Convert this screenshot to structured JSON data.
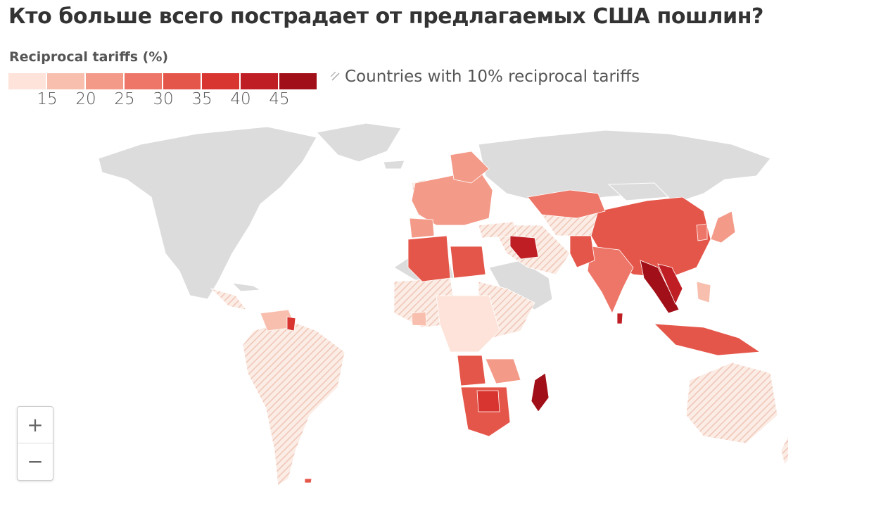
{
  "title": "Кто больше всего пострадает от предлагаемых США пошлин?",
  "legend": {
    "title": "Reciprocal tariffs (%)",
    "colors": [
      "#fde3d9",
      "#f8bfae",
      "#f39a88",
      "#ee7668",
      "#e5564a",
      "#d93530",
      "#bf1f24",
      "#a10f18"
    ],
    "ticks": [
      "15",
      "20",
      "25",
      "30",
      "35",
      "40",
      "45"
    ],
    "hatch_label": "Countries with 10% reciprocal tariffs"
  },
  "map": {
    "base_color": "#dcdcdc",
    "hatch_color": "#f3c9b8"
  },
  "zoom": {
    "in_label": "+",
    "out_label": "−"
  }
}
